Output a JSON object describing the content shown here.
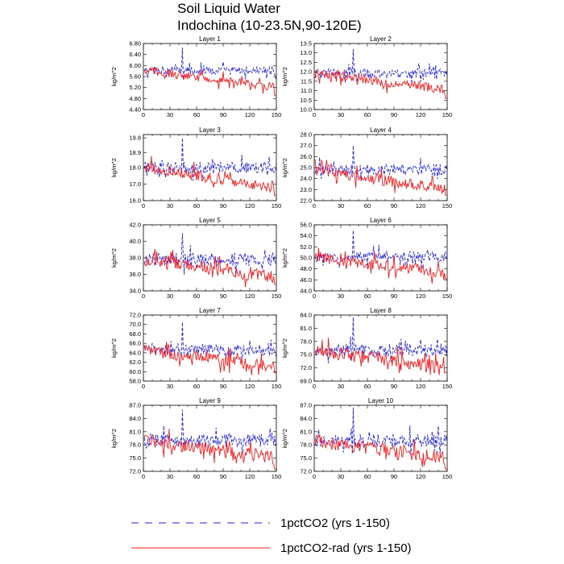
{
  "figure": {
    "title_line1": "Soil Liquid Water",
    "title_line2": "Indochina (10-23.5N,90-120E)"
  },
  "colors": {
    "series_1": "#2323e8",
    "series_2": "#ff1a1a"
  },
  "legend": {
    "placement": "bottom-center",
    "items": [
      {
        "label": "1pctCO2 (yrs 1-150)",
        "color": "#2323e8",
        "style": "dashed"
      },
      {
        "label": "1pctCO2-rad (yrs 1-150)",
        "color": "#ff1a1a",
        "style": "solid"
      }
    ]
  },
  "chart_data": [
    {
      "type": "line",
      "title": "Layer 1",
      "xlabel": "",
      "ylabel": "kg/m^2",
      "xlim": [
        0,
        150
      ],
      "ylim": [
        4.4,
        6.8
      ],
      "yticks": [
        "4.40",
        "4.80",
        "5.20",
        "5.60",
        "6.00",
        "6.40",
        "6.80"
      ],
      "xticks": [
        "0",
        "30",
        "60",
        "90",
        "120",
        "150"
      ],
      "series": [
        {
          "label": "1pctCO2",
          "start": 5.82,
          "trend": 0.0,
          "amp": 0.15,
          "spikes": [
            [
              44,
              6.65
            ]
          ]
        },
        {
          "label": "1pctCO2-rad",
          "start": 5.82,
          "trend": -0.6,
          "amp": 0.15,
          "end_min": 4.9
        }
      ]
    },
    {
      "type": "line",
      "title": "Layer 2",
      "xlabel": "",
      "ylabel": "kg/m^2",
      "xlim": [
        0,
        150
      ],
      "ylim": [
        10.0,
        13.5
      ],
      "yticks": [
        "10.0",
        "10.5",
        "11.0",
        "11.5",
        "12.0",
        "12.5",
        "13.0",
        "13.5"
      ],
      "xticks": [
        "0",
        "30",
        "60",
        "90",
        "120",
        "150"
      ],
      "series": [
        {
          "label": "1pctCO2",
          "start": 11.9,
          "trend": 0.0,
          "amp": 0.25,
          "spikes": [
            [
              44,
              13.2
            ]
          ]
        },
        {
          "label": "1pctCO2-rad",
          "start": 11.9,
          "trend": -0.85,
          "amp": 0.25,
          "end_min": 10.6
        }
      ]
    },
    {
      "type": "line",
      "title": "Layer 3",
      "xlabel": "",
      "ylabel": "kg/m^2",
      "xlim": [
        0,
        150
      ],
      "ylim": [
        16.0,
        20.0
      ],
      "yticks": [
        "16.0",
        "17.0",
        "18.0",
        "18.9",
        "19.8"
      ],
      "xticks": [
        "0",
        "30",
        "60",
        "90",
        "120",
        "150"
      ],
      "series": [
        {
          "label": "1pctCO2",
          "start": 18.0,
          "trend": 0.0,
          "amp": 0.35,
          "spikes": [
            [
              44,
              19.8
            ]
          ]
        },
        {
          "label": "1pctCO2-rad",
          "start": 18.0,
          "trend": -1.2,
          "amp": 0.35,
          "end_min": 16.3
        }
      ]
    },
    {
      "type": "line",
      "title": "Layer 4",
      "xlabel": "",
      "ylabel": "kg/m^2",
      "xlim": [
        0,
        150
      ],
      "ylim": [
        22.0,
        28.0
      ],
      "yticks": [
        "22.0",
        "23.0",
        "24.0",
        "25.0",
        "26.0",
        "27.0",
        "28.0"
      ],
      "xticks": [
        "0",
        "30",
        "60",
        "90",
        "120",
        "150"
      ],
      "series": [
        {
          "label": "1pctCO2",
          "start": 24.8,
          "trend": 0.0,
          "amp": 0.5,
          "spikes": [
            [
              44,
              27.0
            ]
          ]
        },
        {
          "label": "1pctCO2-rad",
          "start": 24.8,
          "trend": -1.8,
          "amp": 0.5,
          "end_min": 22.5
        }
      ]
    },
    {
      "type": "line",
      "title": "Layer 5",
      "xlabel": "",
      "ylabel": "kg/m^2",
      "xlim": [
        0,
        150
      ],
      "ylim": [
        34.0,
        42.0
      ],
      "yticks": [
        "34.0",
        "36.0",
        "38.0",
        "40.0",
        "42.0"
      ],
      "xticks": [
        "0",
        "30",
        "60",
        "90",
        "120",
        "150"
      ],
      "series": [
        {
          "label": "1pctCO2",
          "start": 37.8,
          "trend": 0.0,
          "amp": 0.8,
          "spikes": [
            [
              44,
              41.0
            ]
          ]
        },
        {
          "label": "1pctCO2-rad",
          "start": 37.8,
          "trend": -2.2,
          "amp": 0.8,
          "end_min": 34.8
        }
      ]
    },
    {
      "type": "line",
      "title": "Layer 6",
      "xlabel": "",
      "ylabel": "kg/m^2",
      "xlim": [
        0,
        150
      ],
      "ylim": [
        44.0,
        56.0
      ],
      "yticks": [
        "44.0",
        "46.0",
        "48.0",
        "50.0",
        "52.0",
        "54.0",
        "56.0"
      ],
      "xticks": [
        "0",
        "30",
        "60",
        "90",
        "120",
        "150"
      ],
      "series": [
        {
          "label": "1pctCO2",
          "start": 50.2,
          "trend": 0.0,
          "amp": 1.0,
          "spikes": [
            [
              44,
              55.0
            ]
          ]
        },
        {
          "label": "1pctCO2-rad",
          "start": 50.2,
          "trend": -3.0,
          "amp": 1.0,
          "end_min": 46.2
        }
      ]
    },
    {
      "type": "line",
      "title": "Layer 7",
      "xlabel": "",
      "ylabel": "kg/m^2",
      "xlim": [
        0,
        150
      ],
      "ylim": [
        58.0,
        72.0
      ],
      "yticks": [
        "58.0",
        "60.0",
        "62.0",
        "64.0",
        "66.0",
        "68.0",
        "70.0",
        "72.0"
      ],
      "xticks": [
        "0",
        "30",
        "60",
        "90",
        "120",
        "150"
      ],
      "series": [
        {
          "label": "1pctCO2",
          "start": 64.5,
          "trend": 0.0,
          "amp": 1.2,
          "spikes": [
            [
              44,
              70.5
            ]
          ]
        },
        {
          "label": "1pctCO2-rad",
          "start": 64.5,
          "trend": -3.5,
          "amp": 1.2,
          "end_min": 59.8
        }
      ]
    },
    {
      "type": "line",
      "title": "Layer 8",
      "xlabel": "",
      "ylabel": "kg/m^2",
      "xlim": [
        0,
        150
      ],
      "ylim": [
        69.0,
        84.0
      ],
      "yticks": [
        "69.0",
        "72.0",
        "75.0",
        "78.0",
        "81.0",
        "84.0"
      ],
      "xticks": [
        "0",
        "30",
        "60",
        "90",
        "120",
        "150"
      ],
      "series": [
        {
          "label": "1pctCO2",
          "start": 76.0,
          "trend": 0.0,
          "amp": 1.5,
          "spikes": [
            [
              44,
              83.5
            ]
          ]
        },
        {
          "label": "1pctCO2-rad",
          "start": 76.0,
          "trend": -4.0,
          "amp": 1.5,
          "end_min": 71.0
        }
      ]
    },
    {
      "type": "line",
      "title": "Layer 9",
      "xlabel": "",
      "ylabel": "kg/m^2",
      "xlim": [
        0,
        150
      ],
      "ylim": [
        72.0,
        87.0
      ],
      "yticks": [
        "72.0",
        "75.0",
        "78.0",
        "81.0",
        "84.0",
        "87.0"
      ],
      "xticks": [
        "0",
        "30",
        "60",
        "90",
        "120",
        "150"
      ],
      "series": [
        {
          "label": "1pctCO2",
          "start": 79.0,
          "trend": 0.0,
          "amp": 1.5,
          "spikes": [
            [
              44,
              86.0
            ]
          ]
        },
        {
          "label": "1pctCO2-rad",
          "start": 79.0,
          "trend": -4.0,
          "amp": 1.5,
          "end_min": 72.5
        }
      ]
    },
    {
      "type": "line",
      "title": "Layer 10",
      "xlabel": "",
      "ylabel": "kg/m^2",
      "xlim": [
        0,
        150
      ],
      "ylim": [
        72.0,
        87.0
      ],
      "yticks": [
        "72.0",
        "75.0",
        "78.0",
        "81.0",
        "84.0",
        "87.0"
      ],
      "xticks": [
        "0",
        "30",
        "60",
        "90",
        "120",
        "150"
      ],
      "series": [
        {
          "label": "1pctCO2",
          "start": 79.0,
          "trend": 0.0,
          "amp": 1.5,
          "spikes": [
            [
              44,
              86.5
            ]
          ]
        },
        {
          "label": "1pctCO2-rad",
          "start": 79.0,
          "trend": -4.0,
          "amp": 1.5,
          "end_min": 72.5
        }
      ]
    }
  ]
}
